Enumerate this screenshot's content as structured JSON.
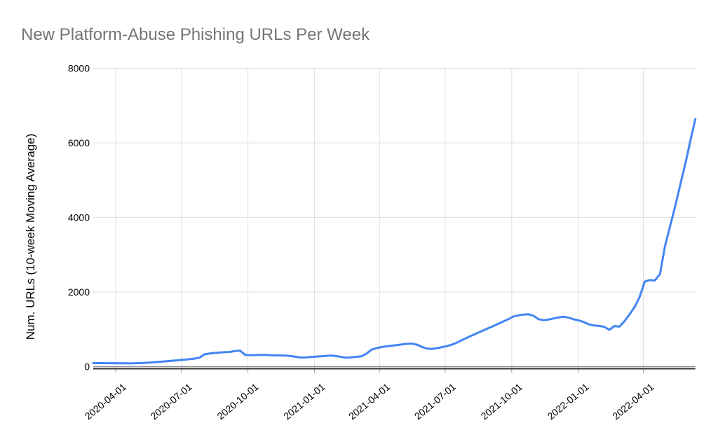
{
  "chart": {
    "title_color": "#757575",
    "line_color": "#4285f4",
    "grid_color": "#e0e0e0",
    "baseline_color": "#8f8f8f",
    "axis_color": "#333333",
    "tick_label_color": "#000000"
  },
  "chart_data": {
    "type": "line",
    "title": "New Platform-Abuse Phishing URLs Per Week",
    "xlabel": "",
    "ylabel": "Num. URLs (10-week Moving Average)",
    "grid": true,
    "legend": "none",
    "ylim": [
      0,
      8000
    ],
    "y_ticks": [
      0,
      2000,
      4000,
      6000,
      8000
    ],
    "xlim": [
      "2020-03-01",
      "2022-06-12"
    ],
    "x_tick_labels": [
      "2020-04-01",
      "2020-07-01",
      "2020-10-01",
      "2021-01-01",
      "2021-04-01",
      "2021-07-01",
      "2021-10-01",
      "2022-01-01",
      "2022-04-01"
    ],
    "series": [
      {
        "x": [
          "2020-03-01",
          "2020-03-08",
          "2020-03-15",
          "2020-03-22",
          "2020-03-29",
          "2020-04-05",
          "2020-04-12",
          "2020-04-19",
          "2020-04-26",
          "2020-05-03",
          "2020-05-10",
          "2020-05-17",
          "2020-05-24",
          "2020-05-31",
          "2020-06-07",
          "2020-06-14",
          "2020-06-21",
          "2020-06-28",
          "2020-07-05",
          "2020-07-12",
          "2020-07-19",
          "2020-07-26",
          "2020-08-02",
          "2020-08-09",
          "2020-08-16",
          "2020-08-23",
          "2020-08-30",
          "2020-09-06",
          "2020-09-13",
          "2020-09-20",
          "2020-09-27",
          "2020-10-04",
          "2020-10-11",
          "2020-10-18",
          "2020-10-25",
          "2020-11-01",
          "2020-11-08",
          "2020-11-15",
          "2020-11-22",
          "2020-11-29",
          "2020-12-06",
          "2020-12-13",
          "2020-12-20",
          "2020-12-27",
          "2021-01-03",
          "2021-01-10",
          "2021-01-17",
          "2021-01-24",
          "2021-01-31",
          "2021-02-07",
          "2021-02-14",
          "2021-02-21",
          "2021-02-28",
          "2021-03-07",
          "2021-03-14",
          "2021-03-21",
          "2021-03-28",
          "2021-04-04",
          "2021-04-11",
          "2021-04-18",
          "2021-04-25",
          "2021-05-02",
          "2021-05-09",
          "2021-05-16",
          "2021-05-23",
          "2021-05-30",
          "2021-06-06",
          "2021-06-13",
          "2021-06-20",
          "2021-06-27",
          "2021-07-04",
          "2021-07-11",
          "2021-07-18",
          "2021-07-25",
          "2021-08-01",
          "2021-08-08",
          "2021-08-15",
          "2021-08-22",
          "2021-08-29",
          "2021-09-05",
          "2021-09-12",
          "2021-09-19",
          "2021-09-26",
          "2021-10-03",
          "2021-10-10",
          "2021-10-17",
          "2021-10-24",
          "2021-10-31",
          "2021-11-07",
          "2021-11-14",
          "2021-11-21",
          "2021-11-28",
          "2021-12-05",
          "2021-12-12",
          "2021-12-19",
          "2021-12-26",
          "2022-01-02",
          "2022-01-09",
          "2022-01-16",
          "2022-01-23",
          "2022-01-30",
          "2022-02-06",
          "2022-02-13",
          "2022-02-20",
          "2022-02-27",
          "2022-03-06",
          "2022-03-13",
          "2022-03-20",
          "2022-03-27",
          "2022-04-03",
          "2022-04-10",
          "2022-04-17",
          "2022-04-24",
          "2022-05-01",
          "2022-05-08",
          "2022-05-15",
          "2022-05-22",
          "2022-05-29",
          "2022-06-05",
          "2022-06-12"
        ],
        "values": [
          95,
          94,
          93,
          92,
          92,
          90,
          88,
          87,
          89,
          93,
          99,
          107,
          116,
          127,
          139,
          150,
          161,
          172,
          185,
          200,
          215,
          240,
          330,
          352,
          366,
          377,
          386,
          392,
          418,
          430,
          315,
          306,
          310,
          314,
          311,
          307,
          303,
          299,
          294,
          284,
          262,
          243,
          246,
          257,
          268,
          276,
          287,
          297,
          281,
          259,
          238,
          249,
          262,
          276,
          350,
          455,
          495,
          525,
          545,
          562,
          578,
          595,
          610,
          615,
          590,
          525,
          482,
          475,
          495,
          525,
          552,
          595,
          650,
          720,
          785,
          845,
          905,
          965,
          1025,
          1085,
          1145,
          1210,
          1270,
          1340,
          1375,
          1395,
          1405,
          1365,
          1272,
          1245,
          1262,
          1292,
          1322,
          1337,
          1310,
          1268,
          1238,
          1192,
          1132,
          1103,
          1092,
          1066,
          985,
          1088,
          1072,
          1220,
          1400,
          1600,
          1870,
          2280,
          2320,
          2310,
          2480,
          3230,
          3760,
          4290,
          4870,
          5430,
          6050,
          6640
        ]
      }
    ]
  }
}
